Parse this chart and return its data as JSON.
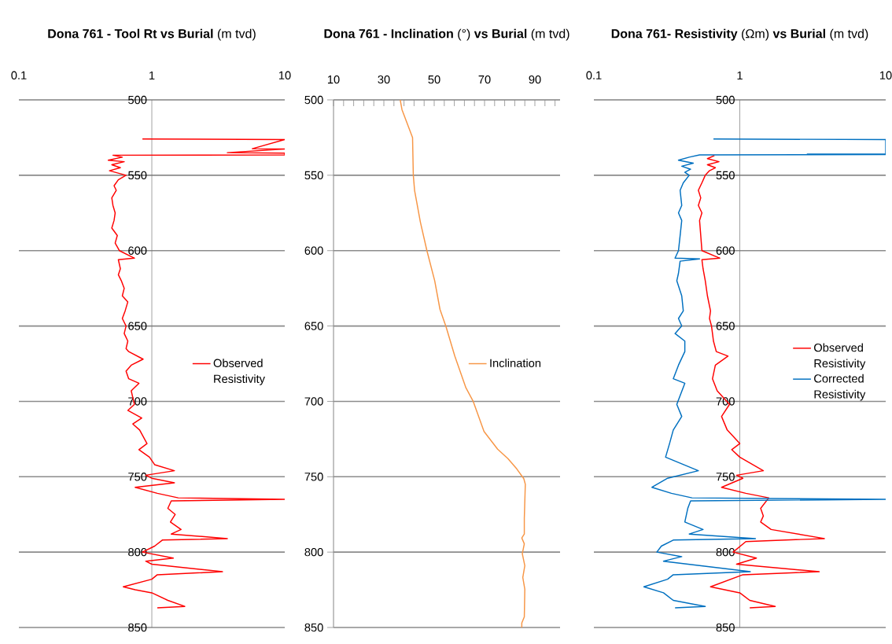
{
  "chart_data": [
    {
      "type": "line",
      "title": "**Dona 761  - Tool Rt vs Burial** (m tvd)",
      "log": "x",
      "xlim": [
        0.1,
        10
      ],
      "xticks": [
        0.1,
        1,
        10
      ],
      "ylim": [
        850,
        500
      ],
      "yticks": [
        500,
        550,
        600,
        650,
        700,
        750,
        800,
        850
      ],
      "grid": "y",
      "legend": "right",
      "series": [
        {
          "name": "Observed Resistivity",
          "color": "#ff0000",
          "x": [
            0.85,
            10,
            5.7,
            10,
            3.7,
            10,
            10,
            0.51,
            0.6,
            0.47,
            0.62,
            0.5,
            0.58,
            0.48,
            0.64,
            0.56,
            0.52,
            0.54,
            0.5,
            0.51,
            0.53,
            0.52,
            0.5,
            0.55,
            0.53,
            0.57,
            0.74,
            0.56,
            0.58,
            0.56,
            0.59,
            0.62,
            0.6,
            0.66,
            0.63,
            0.6,
            0.64,
            0.62,
            0.66,
            0.64,
            0.67,
            0.86,
            0.7,
            0.64,
            0.67,
            0.8,
            0.7,
            0.74,
            0.66,
            0.84,
            0.72,
            0.81,
            0.92,
            0.8,
            0.96,
            1.05,
            1.48,
            0.9,
            1.0,
            1.48,
            0.75,
            1.1,
            1.58,
            10,
            1.4,
            1.32,
            1.5,
            1.38,
            1.66,
            1.4,
            3.7,
            1.2,
            1.05,
            0.85,
            1.45,
            0.9,
            1.0,
            3.4,
            1.1,
            1.0,
            0.61,
            0.75,
            1.0,
            1.32,
            1.77,
            1.1
          ],
          "values": [
            526,
            526.3,
            532.4,
            532.6,
            535,
            535.3,
            536.5,
            536.7,
            538,
            540,
            541,
            543,
            545,
            547,
            550,
            553,
            557,
            560,
            565,
            570,
            575,
            580,
            585,
            590,
            595,
            600,
            605,
            606,
            612,
            616,
            620,
            625,
            630,
            634,
            640,
            645,
            650,
            655,
            660,
            665,
            667,
            672,
            676,
            680,
            685,
            688,
            693,
            702,
            706,
            711,
            715,
            719,
            728,
            732,
            737,
            742,
            746,
            749,
            751,
            754,
            757,
            761,
            764,
            765,
            766,
            771,
            775,
            780,
            785,
            788,
            791,
            792,
            796,
            800,
            804,
            806,
            808,
            813,
            815,
            818,
            823,
            825,
            827,
            832,
            836,
            837
          ]
        }
      ]
    },
    {
      "type": "line",
      "title": "**Dona 761 - Inclination** (°) **vs Burial** (m tvd)",
      "xlim": [
        10,
        100
      ],
      "xticks": [
        10,
        {
          "value": 14,
          "label": null
        },
        {
          "value": 18,
          "label": null
        },
        {
          "value": 22,
          "label": null
        },
        {
          "value": 26,
          "label": null
        },
        30,
        {
          "value": 34,
          "label": null
        },
        {
          "value": 38,
          "label": null
        },
        {
          "value": 42,
          "label": null
        },
        {
          "value": 46,
          "label": null
        },
        50,
        {
          "value": 54,
          "label": null
        },
        {
          "value": 58,
          "label": null
        },
        {
          "value": 62,
          "label": null
        },
        {
          "value": 66,
          "label": null
        },
        70,
        {
          "value": 74,
          "label": null
        },
        {
          "value": 78,
          "label": null
        },
        {
          "value": 82,
          "label": null
        },
        {
          "value": 86,
          "label": null
        },
        90,
        {
          "value": 94,
          "label": null
        },
        {
          "value": 98,
          "label": null
        }
      ],
      "ylim": [
        850,
        500
      ],
      "yticks": [
        500,
        550,
        600,
        650,
        700,
        750,
        800,
        850
      ],
      "grid": "y",
      "legend": "right",
      "series": [
        {
          "name": "Inclination",
          "color": "#f79646",
          "x": [
            36.5,
            37.2,
            41.4,
            41.7,
            42.2,
            44.5,
            47.1,
            50.2,
            52.3,
            54.7,
            58.2,
            62.6,
            65.5,
            69.8,
            75.2,
            79.3,
            82.8,
            85.6,
            86.2,
            85.8,
            85.8,
            84.8,
            85.8,
            85,
            86,
            85.2,
            86,
            85.8,
            84.8,
            84.8
          ],
          "values": [
            500,
            506.5,
            525,
            550,
            560,
            581,
            600,
            620,
            639,
            650.5,
            670,
            691,
            700,
            720,
            731.7,
            738,
            744.8,
            751.3,
            755,
            777.5,
            788,
            790.6,
            794.5,
            801,
            809,
            816.8,
            824.6,
            843,
            847,
            850
          ]
        }
      ]
    },
    {
      "type": "line",
      "title": "**Dona 761- Resistivity** (Ωm) **vs Burial** (m tvd)",
      "log": "x",
      "xlim": [
        0.1,
        10
      ],
      "xticks": [
        0.1,
        1,
        10
      ],
      "ylim": [
        850,
        500
      ],
      "yticks": [
        500,
        550,
        600,
        650,
        700,
        750,
        800,
        850
      ],
      "grid": "y",
      "legend": "right",
      "series": [
        {
          "name": "Observed Resistivity",
          "color": "#ff0000",
          "x": [
            0.67,
            0.6,
            0.72,
            0.6,
            0.68,
            0.62,
            0.58,
            0.55,
            0.52,
            0.54,
            0.52,
            0.55,
            0.53,
            0.54,
            0.55,
            0.73,
            0.55,
            0.56,
            0.58,
            0.6,
            0.63,
            0.62,
            0.64,
            0.66,
            0.69,
            0.83,
            0.68,
            0.65,
            0.7,
            0.85,
            0.75,
            0.82,
            1.0,
            0.88,
            1.0,
            1.45,
            0.95,
            1.05,
            0.75,
            1.1,
            1.58,
            1.39,
            1.45,
            1.39,
            1.64,
            3.8,
            1.1,
            0.9,
            1.3,
            0.95,
            3.5,
            1.05,
            0.63,
            1.0,
            1.17,
            1.75,
            1.17
          ],
          "values": [
            537,
            539,
            541,
            543,
            545,
            547,
            550,
            555,
            560,
            565,
            570,
            575,
            580,
            590,
            600,
            605,
            606,
            612,
            620,
            630,
            640,
            645,
            650,
            660,
            667,
            670,
            676,
            685,
            693,
            702,
            710,
            719,
            728,
            732,
            737,
            746,
            749,
            751,
            757,
            761,
            764,
            771,
            776,
            780,
            785,
            791,
            793,
            800,
            804,
            808,
            813,
            815,
            823,
            827,
            832,
            836,
            837
          ]
        },
        {
          "name": "Corrected Resistivity",
          "color": "#0070c0",
          "x": [
            0.66,
            10,
            10,
            2.9,
            10,
            0.53,
            0.45,
            0.38,
            0.48,
            0.4,
            0.46,
            0.42,
            0.45,
            0.41,
            0.39,
            0.4,
            0.38,
            0.4,
            0.39,
            0.38,
            0.36,
            0.53,
            0.39,
            0.38,
            0.37,
            0.4,
            0.41,
            0.38,
            0.4,
            0.36,
            0.42,
            0.42,
            0.38,
            0.35,
            0.42,
            0.37,
            0.4,
            0.35,
            0.33,
            0.31,
            0.52,
            0.32,
            0.25,
            0.34,
            0.47,
            10,
            0.46,
            0.44,
            0.42,
            0.56,
            0.45,
            1.28,
            0.35,
            0.29,
            0.27,
            0.4,
            0.3,
            1.18,
            0.35,
            0.32,
            0.22,
            0.3,
            0.35,
            0.58,
            0.36
          ],
          "values": [
            526,
            526.3,
            535.8,
            536,
            536.3,
            536.5,
            538,
            540,
            542,
            544,
            546,
            548,
            550,
            555,
            560,
            570,
            575,
            580,
            590,
            600,
            605,
            605.5,
            607,
            615,
            620,
            630,
            640,
            645,
            650,
            655,
            660,
            667,
            676,
            685,
            688,
            702,
            710,
            719,
            728,
            737,
            746,
            751,
            757,
            761,
            764,
            765,
            766,
            771,
            780,
            785,
            788,
            791,
            792,
            796,
            800,
            803,
            806,
            813,
            815,
            818,
            823,
            827,
            832,
            836,
            837
          ]
        }
      ]
    }
  ]
}
